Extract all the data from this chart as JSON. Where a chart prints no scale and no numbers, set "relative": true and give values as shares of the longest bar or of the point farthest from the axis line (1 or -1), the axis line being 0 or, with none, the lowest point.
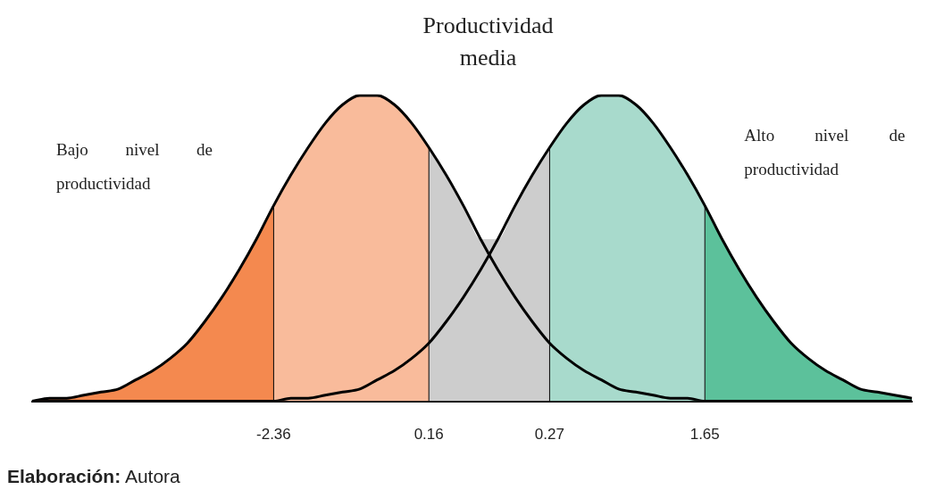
{
  "chart_data": {
    "type": "area",
    "title": "Productividad media",
    "relative": true,
    "legend": false,
    "categories": [
      null,
      null,
      null,
      null,
      null,
      null,
      null,
      null,
      null,
      null,
      null,
      null,
      null,
      null,
      "-2.36",
      null,
      null,
      null,
      null,
      null,
      null,
      null,
      null,
      "0.16",
      null,
      null,
      null,
      null,
      null,
      null,
      "0.27",
      null,
      null,
      null,
      null,
      null,
      null,
      null,
      null,
      "1.65",
      null,
      null,
      null,
      null,
      null,
      null,
      null,
      null,
      null,
      null,
      null,
      null
    ],
    "series": [
      {
        "color": "#f4894f",
        "values": [
          0,
          0.01,
          0.01,
          0.02,
          0.03,
          0.04,
          0.07,
          0.1,
          0.14,
          0.19,
          0.26,
          0.34,
          0.43,
          0.53,
          0.64,
          null,
          null,
          null,
          null,
          null,
          null,
          null,
          null,
          null,
          null,
          null,
          null,
          null,
          null,
          null,
          null,
          null,
          null,
          null,
          null,
          null,
          null,
          null,
          null,
          null,
          null,
          null,
          null,
          null,
          null,
          null,
          null,
          null,
          null,
          null,
          null,
          null
        ]
      },
      {
        "color": "#f9bb9b",
        "values": [
          null,
          null,
          null,
          null,
          null,
          null,
          null,
          null,
          null,
          null,
          null,
          null,
          null,
          null,
          0.64,
          0.74,
          0.83,
          0.91,
          0.97,
          1,
          1,
          0.97,
          0.91,
          0.83,
          null,
          null,
          null,
          null,
          null,
          null,
          null,
          null,
          null,
          null,
          null,
          null,
          null,
          null,
          null,
          null,
          null,
          null,
          null,
          null,
          null,
          null,
          null,
          null,
          null,
          null,
          null,
          null
        ]
      },
      {
        "color": "#cdcdcd",
        "values": [
          null,
          null,
          null,
          null,
          null,
          null,
          null,
          null,
          null,
          null,
          null,
          null,
          null,
          null,
          null,
          null,
          null,
          null,
          null,
          null,
          null,
          null,
          null,
          0.83,
          0.74,
          0.64,
          0.53,
          0.53,
          0.64,
          0.74,
          0.83,
          null,
          null,
          null,
          null,
          null,
          null,
          null,
          null,
          null,
          null,
          null,
          null,
          null,
          null,
          null,
          null,
          null,
          null,
          null,
          null,
          null
        ]
      },
      {
        "color": "#a8dacc",
        "values": [
          null,
          null,
          null,
          null,
          null,
          null,
          null,
          null,
          null,
          null,
          null,
          null,
          null,
          null,
          null,
          null,
          null,
          null,
          null,
          null,
          null,
          null,
          null,
          null,
          null,
          null,
          null,
          null,
          null,
          null,
          0.83,
          0.91,
          0.97,
          1,
          1,
          0.97,
          0.91,
          0.83,
          0.74,
          0.64,
          null,
          null,
          null,
          null,
          null,
          null,
          null,
          null,
          null,
          null,
          null,
          null
        ]
      },
      {
        "color": "#5cc19b",
        "values": [
          null,
          null,
          null,
          null,
          null,
          null,
          null,
          null,
          null,
          null,
          null,
          null,
          null,
          null,
          null,
          null,
          null,
          null,
          null,
          null,
          null,
          null,
          null,
          null,
          null,
          null,
          null,
          null,
          null,
          null,
          null,
          null,
          null,
          null,
          null,
          null,
          null,
          null,
          null,
          0.64,
          0.53,
          0.43,
          0.34,
          0.26,
          0.19,
          0.14,
          0.1,
          0.07,
          0.04,
          0.03,
          0.02,
          0.01
        ]
      },
      {
        "type": "line",
        "name": "Bajo nivel de productividad",
        "color": "#000000",
        "values": [
          0,
          0.01,
          0.01,
          0.02,
          0.03,
          0.04,
          0.07,
          0.1,
          0.14,
          0.19,
          0.26,
          0.34,
          0.43,
          0.53,
          0.64,
          0.74,
          0.83,
          0.91,
          0.97,
          1,
          1,
          0.97,
          0.91,
          0.83,
          0.74,
          0.64,
          0.53,
          0.43,
          0.34,
          0.26,
          0.19,
          0.14,
          0.1,
          0.07,
          0.04,
          0.03,
          0.02,
          0.01,
          0.01,
          0,
          0,
          0,
          0,
          0,
          0,
          0,
          0,
          0,
          0,
          0,
          0,
          0
        ]
      },
      {
        "type": "line",
        "name": "Alto nivel de productividad",
        "color": "#000000",
        "values": [
          0,
          0,
          0,
          0,
          0,
          0,
          0,
          0,
          0,
          0,
          0,
          0,
          0,
          0,
          0,
          0.01,
          0.01,
          0.02,
          0.03,
          0.04,
          0.07,
          0.1,
          0.14,
          0.19,
          0.26,
          0.34,
          0.43,
          0.53,
          0.64,
          0.74,
          0.83,
          0.91,
          0.97,
          1,
          1,
          0.97,
          0.91,
          0.83,
          0.74,
          0.64,
          0.53,
          0.43,
          0.34,
          0.26,
          0.19,
          0.14,
          0.1,
          0.07,
          0.04,
          0.03,
          0.02,
          0.01
        ]
      }
    ],
    "annotations": [
      "Elaboración: Autora"
    ]
  }
}
